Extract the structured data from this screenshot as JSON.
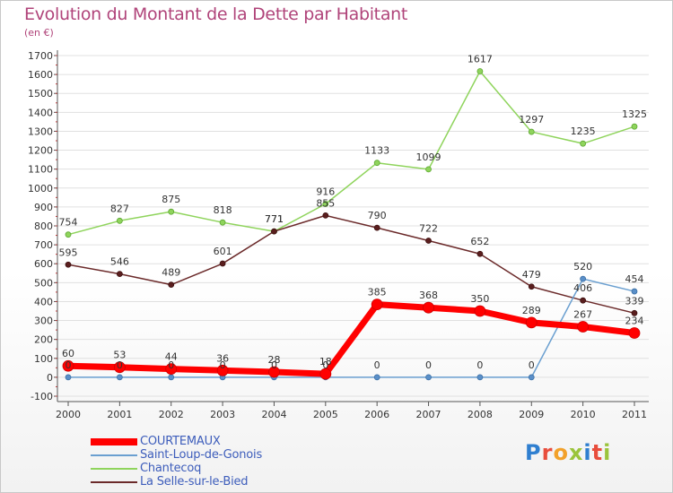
{
  "title": "Evolution du Montant de la Dette par Habitant",
  "unit_label": "(en €)",
  "logo_text": "Proxiti",
  "logo_letters": [
    "P",
    "r",
    "o",
    "x",
    "i",
    "t",
    "i"
  ],
  "colors": {
    "title": "#b0447a",
    "axis": "#555555",
    "grid": "#e0e0e0",
    "legend_text": "#3d5dbb"
  },
  "chart_data": {
    "type": "line",
    "title": "Evolution du Montant de la Dette par Habitant",
    "ylabel": "(en €)",
    "xlabel": "",
    "x": [
      "2000",
      "2001",
      "2002",
      "2003",
      "2004",
      "2005",
      "2006",
      "2007",
      "2008",
      "2009",
      "2010",
      "2011"
    ],
    "ylim": [
      -100,
      1700
    ],
    "yticks": [
      -100,
      0,
      100,
      200,
      300,
      400,
      500,
      600,
      700,
      800,
      900,
      1000,
      1100,
      1200,
      1300,
      1400,
      1500,
      1600,
      1700
    ],
    "grid": "horizontal",
    "legend_position": "bottom-left",
    "series": [
      {
        "name": "COURTEMAUX",
        "color": "#ff0000",
        "values": [
          60,
          53,
          44,
          36,
          28,
          18,
          385,
          368,
          350,
          289,
          267,
          234
        ]
      },
      {
        "name": "Saint-Loup-de-Gonois",
        "color": "#6a9fd0",
        "values": [
          0,
          0,
          0,
          0,
          0,
          0,
          0,
          0,
          0,
          0,
          520,
          454
        ]
      },
      {
        "name": "Chantecoq",
        "color": "#8fd45c",
        "values": [
          754,
          827,
          875,
          818,
          771,
          916,
          1133,
          1099,
          1617,
          1297,
          1235,
          1325
        ]
      },
      {
        "name": "La Selle-sur-le-Bied",
        "color": "#6b2a2a",
        "values": [
          595,
          546,
          489,
          601,
          771,
          855,
          790,
          722,
          652,
          479,
          406,
          339
        ]
      }
    ]
  }
}
